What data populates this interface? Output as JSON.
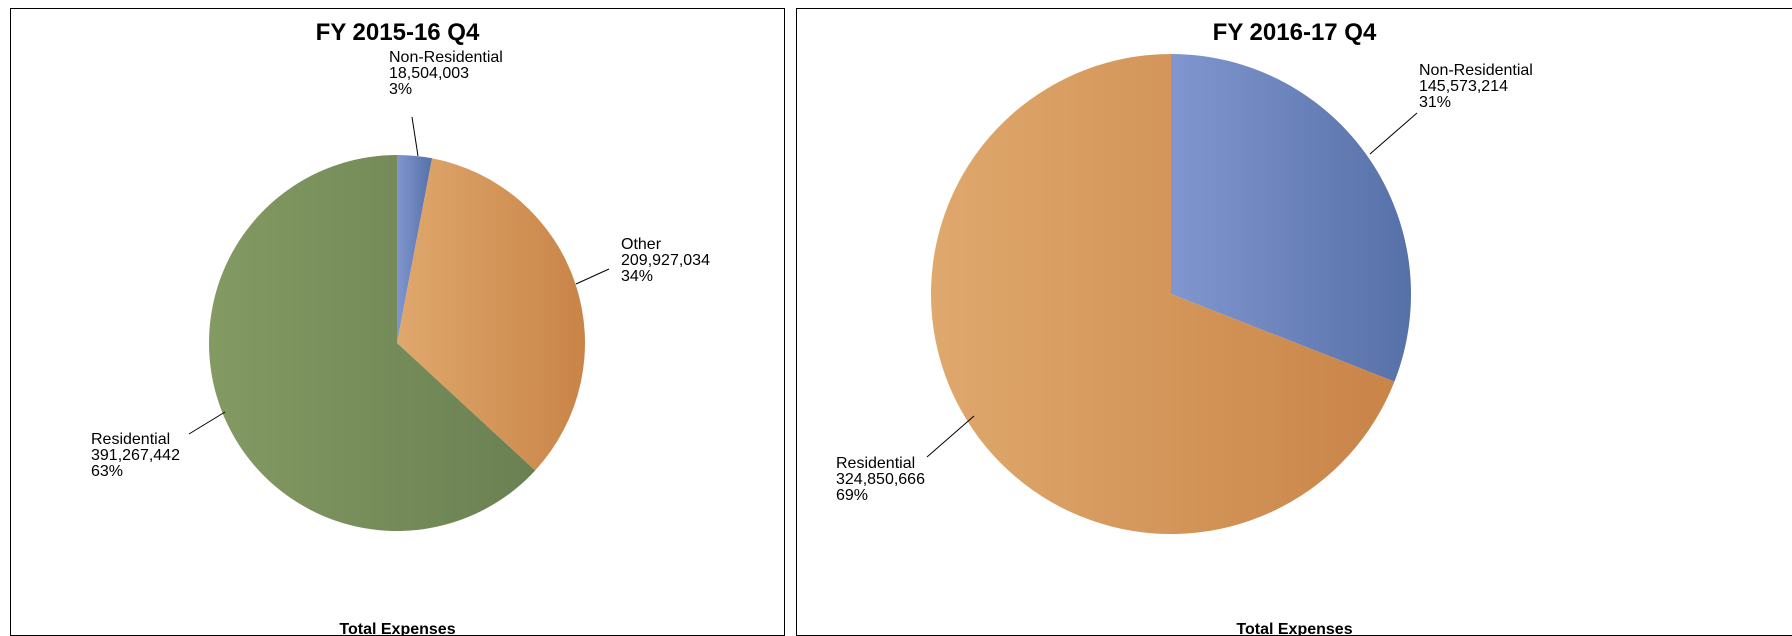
{
  "chart_data": [
    {
      "type": "pie",
      "title": "FY 2015-16 Q4",
      "footer": "Total Expenses",
      "slices": [
        {
          "name": "Non-Residential",
          "value": 18504003,
          "value_label": "18,504,003",
          "percent_label": "3%",
          "color_light": "#8196cf",
          "color_dark": "#5670a8"
        },
        {
          "name": "Other",
          "value": 209927034,
          "value_label": "209,927,034",
          "percent_label": "34%",
          "color_light": "#dfa86c",
          "color_dark": "#c98448"
        },
        {
          "name": "Residential",
          "value": 391267442,
          "value_label": "391,267,442",
          "percent_label": "63%",
          "color_light": "#839a63",
          "color_dark": "#6a8052"
        }
      ]
    },
    {
      "type": "pie",
      "title": "FY 2016-17 Q4",
      "footer": "Total Expenses",
      "slices": [
        {
          "name": "Non-Residential",
          "value": 145573214,
          "value_label": "145,573,214",
          "percent_label": "31%",
          "color_light": "#8196cf",
          "color_dark": "#5670a8"
        },
        {
          "name": "Residential",
          "value": 324850666,
          "value_label": "324,850,666",
          "percent_label": "69%",
          "color_light": "#dfa86c",
          "color_dark": "#c98448"
        }
      ]
    }
  ]
}
